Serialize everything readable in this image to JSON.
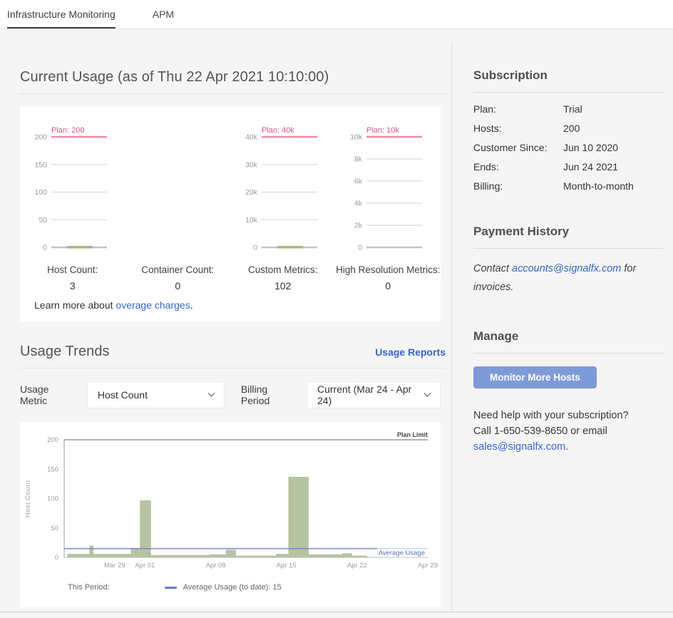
{
  "tabs": {
    "infrastructure": "Infrastructure Monitoring",
    "apm": "APM"
  },
  "current_usage": {
    "title": "Current Usage (as of Thu 22 Apr 2021 10:10:00)",
    "meters": [
      {
        "label": "Host Count:",
        "value": "3",
        "chart": {
          "plan_label": "Plan: 200",
          "ticks": [
            "200",
            "150",
            "100",
            "50",
            "0"
          ],
          "spark": true
        }
      },
      {
        "label": "Container Count:",
        "value": "0",
        "chart": null
      },
      {
        "label": "Custom Metrics:",
        "value": "102",
        "chart": {
          "plan_label": "Plan: 40k",
          "ticks": [
            "40k",
            "30k",
            "20k",
            "10k",
            "0"
          ],
          "spark": true
        }
      },
      {
        "label": "High Resolution Metrics:",
        "value": "0",
        "chart": {
          "plan_label": "Plan: 10k",
          "ticks": [
            "10k",
            "8k",
            "6k",
            "4k",
            "2k",
            "0"
          ],
          "spark": false
        }
      }
    ],
    "footer": {
      "prefix": "Learn more about ",
      "link": "overage charges",
      "suffix": "."
    }
  },
  "usage_trends": {
    "title": "Usage Trends",
    "reports_link": "Usage Reports",
    "filters": {
      "metric_label": "Usage Metric",
      "metric_value": "Host Count",
      "period_label": "Billing Period",
      "period_value": "Current (Mar 24 - Apr 24)"
    },
    "legend": {
      "period_label": "This Period:",
      "avg_label": "Average Usage (to date): 15"
    }
  },
  "chart_data": {
    "type": "bar",
    "title": "Host Count usage this billing period",
    "ylabel": "Host Count",
    "ylim": [
      0,
      200
    ],
    "y_ticks": [
      0,
      50,
      100,
      150,
      200
    ],
    "x_start_date": "Mar 24",
    "x_range_days": 36,
    "x_ticks": [
      {
        "label": "Mar 29",
        "day": 5
      },
      {
        "label": "Apr 01",
        "day": 8
      },
      {
        "label": "Apr 08",
        "day": 15
      },
      {
        "label": "Apr 15",
        "day": 22
      },
      {
        "label": "Apr 22",
        "day": 29
      },
      {
        "label": "Apr 29",
        "day": 36
      }
    ],
    "plan_limit": 200,
    "plan_limit_label": "Plan Limit",
    "average_usage": 15,
    "average_usage_label": "Average Usage",
    "average_line_end_day": 31,
    "bars": [
      {
        "d": 0.3,
        "w": 2.2,
        "v": 6
      },
      {
        "d": 2.5,
        "w": 0.4,
        "v": 20
      },
      {
        "d": 2.9,
        "w": 3.7,
        "v": 6
      },
      {
        "d": 6.6,
        "w": 0.9,
        "v": 15
      },
      {
        "d": 7.5,
        "w": 1.1,
        "v": 97
      },
      {
        "d": 8.6,
        "w": 5.8,
        "v": 4
      },
      {
        "d": 14.4,
        "w": 1.6,
        "v": 5
      },
      {
        "d": 16.0,
        "w": 1.0,
        "v": 13
      },
      {
        "d": 17.0,
        "w": 4.0,
        "v": 3
      },
      {
        "d": 21.0,
        "w": 1.2,
        "v": 6
      },
      {
        "d": 22.2,
        "w": 2.0,
        "v": 137
      },
      {
        "d": 24.2,
        "w": 3.3,
        "v": 5
      },
      {
        "d": 27.5,
        "w": 1.0,
        "v": 7
      },
      {
        "d": 28.5,
        "w": 1.5,
        "v": 3
      }
    ]
  },
  "sidebar": {
    "subscription": {
      "title": "Subscription",
      "rows": [
        {
          "label": "Plan:",
          "value": "Trial"
        },
        {
          "label": "Hosts:",
          "value": "200"
        },
        {
          "label": "Customer Since:",
          "value": "Jun 10 2020"
        },
        {
          "label": "Ends:",
          "value": "Jun 24 2021"
        },
        {
          "label": "Billing:",
          "value": "Month-to-month"
        }
      ]
    },
    "payment": {
      "title": "Payment History",
      "prefix": "Contact ",
      "link": "accounts@signalfx.com",
      "suffix": " for invoices."
    },
    "manage": {
      "title": "Manage",
      "button": "Monitor More Hosts"
    },
    "help": {
      "line1": "Need help with your subscription?",
      "line2": "Call 1-650-539-8650 or email",
      "link": "sales@signalfx.com",
      "suffix": "."
    }
  },
  "colors": {
    "plan_red": "#e8517e",
    "plan_line_red": "#ef8ba5",
    "bar_green": "#b7c2a3",
    "average_blue": "#7b87c9",
    "average_blue_light": "#bcc4e6",
    "average_label_blue": "#5a6fc0",
    "link_blue": "#3565d0",
    "button_blue": "#7e9bd9",
    "axis_gray": "#9b9b9b",
    "plan_limit_line": "#666666"
  }
}
